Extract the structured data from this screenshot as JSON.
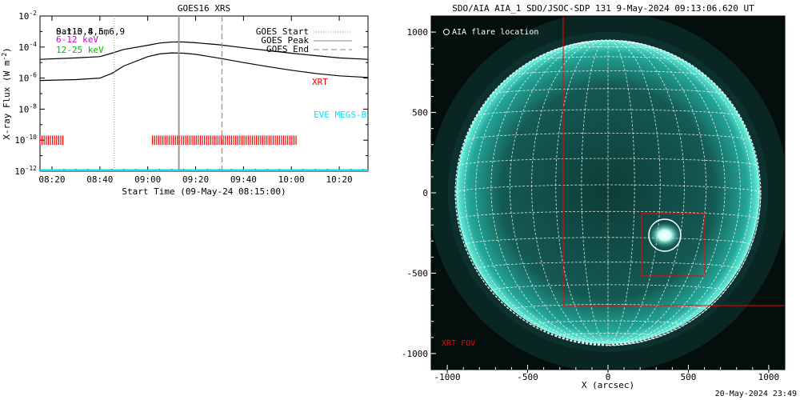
{
  "left_panel": {
    "title": "GOES16 XRS",
    "ylabel_main": "X-ray Flux (W m",
    "ylabel_exp": "-2",
    "ylabel_close": ")",
    "xlabel": "Start Time (09-May-24 08:15:00)",
    "legend_channels": {
      "line1": "0.1-0.8 nm",
      "line1_overlay": "Sat13,4,5,6,9",
      "line2": "6-12 keV",
      "line3": "12-25 keV"
    },
    "legend_markers": [
      "GOES Start",
      "GOES Peak",
      "GOES End"
    ],
    "xrt_label": "XRT",
    "eve_label": "EVE MEGS-B",
    "colors": {
      "line2": "#cc00cc",
      "line3": "#00bb00",
      "xrt": "#ff0000",
      "eve": "#00e0ff"
    }
  },
  "right_panel": {
    "title": "SDO/AIA AIA_1 SDO/JSOC-SDP 131  9-May-2024 09:13:06.620 UT",
    "legend_marker": "AIA flare location",
    "xlabel": "X (arcsec)",
    "fov_label": "XRT FOV",
    "timestamp": "20-May-2024 23:49",
    "colors": {
      "box": "#ff0000",
      "disk": "#1fa89a",
      "grid": "#ffffff"
    }
  },
  "chart_data": [
    {
      "type": "line",
      "title": "GOES16 XRS",
      "xlabel": "Start Time (09-May-24 08:15:00)",
      "ylabel": "X-ray Flux (W m^-2)",
      "y_log": true,
      "xlim": [
        "08:15",
        "10:32"
      ],
      "ylim": [
        1e-12,
        0.01
      ],
      "x_ticks": [
        "08:20",
        "08:40",
        "09:00",
        "09:20",
        "09:40",
        "10:00",
        "10:20"
      ],
      "y_ticks": [
        "10^-12",
        "10^-10",
        "10^-8",
        "10^-6",
        "10^-4",
        "10^-2"
      ],
      "series": [
        {
          "name": "0.1-0.8 nm",
          "x": [
            "08:15",
            "08:30",
            "08:40",
            "08:45",
            "08:50",
            "09:00",
            "09:05",
            "09:10",
            "09:15",
            "09:20",
            "09:30",
            "09:40",
            "09:50",
            "10:00",
            "10:10",
            "10:20",
            "10:32"
          ],
          "values": [
            1.6e-05,
            2e-05,
            2.4e-05,
            4e-05,
            7e-05,
            0.00013,
            0.00018,
            0.00021,
            0.00021,
            0.00019,
            0.00014,
            9e-05,
            6e-05,
            4e-05,
            2.8e-05,
            2e-05,
            1.6e-05
          ]
        },
        {
          "name": "",
          "x": [
            "08:15",
            "08:30",
            "08:40",
            "08:45",
            "08:50",
            "09:00",
            "09:05",
            "09:10",
            "09:15",
            "09:20",
            "09:30",
            "09:40",
            "09:50",
            "10:00",
            "10:10",
            "10:20",
            "10:32"
          ],
          "values": [
            7e-07,
            8e-07,
            1e-06,
            2e-06,
            6e-06,
            2.4e-05,
            3.6e-05,
            4.2e-05,
            4e-05,
            3.4e-05,
            1.9e-05,
            1e-05,
            5.5e-06,
            3.2e-06,
            2e-06,
            1.4e-06,
            1.1e-06
          ]
        }
      ],
      "markers": {
        "GOES Start": "08:46",
        "GOES Peak": "09:13",
        "GOES End": "09:31"
      },
      "xrt_intervals": [
        [
          "08:15",
          "08:25"
        ],
        [
          "09:02",
          "10:02"
        ]
      ],
      "eve_level": 1e-12
    },
    {
      "type": "image",
      "title": "SDO/AIA AIA_1 SDO/JSOC-SDP 131  9-May-2024 09:13:06.620 UT",
      "xlabel": "X (arcsec)",
      "xlim": [
        -1100,
        1100
      ],
      "ylim": [
        -1100,
        1100
      ],
      "x_ticks": [
        "-1000",
        "-500",
        "0",
        "500",
        "1000"
      ],
      "y_ticks": [
        "-1000",
        "-500",
        "0",
        "500",
        "1000"
      ],
      "solar_radius": 950,
      "flare_location": [
        355,
        -270
      ],
      "xrt_fov_large": [
        -290,
        -710,
        1110,
        1105
      ],
      "xrt_fov_small": [
        205,
        -530,
        595,
        -135
      ]
    }
  ]
}
